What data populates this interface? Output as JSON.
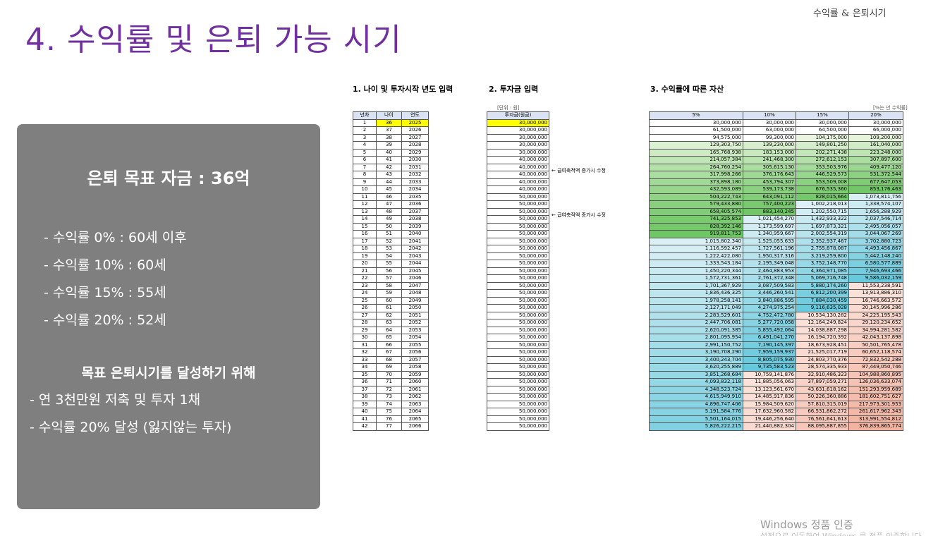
{
  "header": {
    "corner_label": "수익률 & 은퇴시기",
    "title": "4. 수익률 및 은퇴 가능 시기"
  },
  "panel": {
    "goal": "은퇴 목표 자금 : 36억",
    "rates": [
      "- 수익률   0% : 60세 이후",
      "- 수익률 10% : 60세",
      "- 수익률 15% : 55세",
      "- 수익률 20% : 52세"
    ],
    "subheading": "목표 은퇴시기를 달성하기 위해",
    "actions": [
      "- 연 3천만원 저축 및 투자 1채",
      "- 수익률 20% 달성 (잃지않는 투자)"
    ]
  },
  "sections": {
    "s1": "1. 나이 및 투자시작 년도 입력",
    "s2": "2. 투자금 입력",
    "s3": "3. 수익률에 따른 자산"
  },
  "units": {
    "investment": "[단위 : 원]",
    "rate": "[%는 년 수익률]"
  },
  "notes": {
    "n1": "← 급여축적액 증가시 수정",
    "n2": "← 급여축적액 증가시 수정"
  },
  "age_table": {
    "headers": [
      "년차",
      "나이",
      "연도"
    ],
    "highlight_row": 0
  },
  "investment_table": {
    "header": "투자금(원금)"
  },
  "asset_table": {
    "headers": [
      "5%",
      "10%",
      "15%",
      "20%"
    ]
  },
  "rows": [
    [
      "1",
      "36",
      "2025",
      "30,000,000",
      "30,000,000",
      "30,000,000",
      "30,000,000",
      "30,000,000"
    ],
    [
      "2",
      "37",
      "2026",
      "30,000,000",
      "61,500,000",
      "63,000,000",
      "64,500,000",
      "66,000,000"
    ],
    [
      "3",
      "38",
      "2027",
      "30,000,000",
      "94,575,000",
      "99,300,000",
      "104,175,000",
      "109,200,000"
    ],
    [
      "4",
      "39",
      "2028",
      "30,000,000",
      "129,303,750",
      "139,230,000",
      "149,801,250",
      "161,040,000"
    ],
    [
      "5",
      "40",
      "2029",
      "30,000,000",
      "165,768,938",
      "183,153,000",
      "202,271,438",
      "223,248,000"
    ],
    [
      "6",
      "41",
      "2030",
      "40,000,000",
      "214,057,384",
      "241,468,300",
      "272,612,153",
      "307,897,600"
    ],
    [
      "7",
      "42",
      "2031",
      "40,000,000",
      "264,760,254",
      "305,615,130",
      "353,503,976",
      "409,477,120"
    ],
    [
      "8",
      "43",
      "2032",
      "40,000,000",
      "317,998,266",
      "376,176,643",
      "446,529,573",
      "531,372,544"
    ],
    [
      "9",
      "44",
      "2033",
      "40,000,000",
      "373,898,180",
      "453,794,307",
      "553,509,008",
      "677,647,053"
    ],
    [
      "10",
      "45",
      "2034",
      "40,000,000",
      "432,593,089",
      "539,173,738",
      "676,535,360",
      "853,176,463"
    ],
    [
      "11",
      "46",
      "2035",
      "50,000,000",
      "504,222,743",
      "643,091,112",
      "828,015,664",
      "1,073,811,756"
    ],
    [
      "12",
      "47",
      "2036",
      "50,000,000",
      "579,433,880",
      "757,400,223",
      "1,002,218,013",
      "1,338,574,107"
    ],
    [
      "13",
      "48",
      "2037",
      "50,000,000",
      "658,405,574",
      "883,140,245",
      "1,202,550,715",
      "1,656,288,929"
    ],
    [
      "14",
      "49",
      "2038",
      "50,000,000",
      "741,325,853",
      "1,021,454,270",
      "1,432,933,322",
      "2,037,546,714"
    ],
    [
      "15",
      "50",
      "2039",
      "50,000,000",
      "828,392,146",
      "1,173,599,697",
      "1,697,873,321",
      "2,495,056,057"
    ],
    [
      "16",
      "51",
      "2040",
      "50,000,000",
      "919,811,753",
      "1,340,959,667",
      "2,002,554,319",
      "3,044,067,269"
    ],
    [
      "17",
      "52",
      "2041",
      "50,000,000",
      "1,015,802,340",
      "1,525,055,633",
      "2,352,937,467",
      "3,702,880,723"
    ],
    [
      "18",
      "53",
      "2042",
      "50,000,000",
      "1,116,592,457",
      "1,727,561,196",
      "2,755,878,087",
      "4,493,456,867"
    ],
    [
      "19",
      "54",
      "2043",
      "50,000,000",
      "1,222,422,080",
      "1,950,317,316",
      "3,219,259,800",
      "5,442,148,240"
    ],
    [
      "20",
      "55",
      "2044",
      "50,000,000",
      "1,333,543,184",
      "2,195,349,048",
      "3,752,148,770",
      "6,580,577,889"
    ],
    [
      "21",
      "56",
      "2045",
      "50,000,000",
      "1,450,220,344",
      "2,464,883,953",
      "4,364,971,085",
      "7,946,693,466"
    ],
    [
      "22",
      "57",
      "2046",
      "50,000,000",
      "1,572,731,361",
      "2,761,372,348",
      "5,069,716,748",
      "9,586,032,159"
    ],
    [
      "23",
      "58",
      "2047",
      "50,000,000",
      "1,701,367,929",
      "3,087,509,583",
      "5,880,174,260",
      "11,553,238,591"
    ],
    [
      "24",
      "59",
      "2048",
      "50,000,000",
      "1,836,436,325",
      "3,446,260,541",
      "6,812,200,399",
      "13,913,886,310"
    ],
    [
      "25",
      "60",
      "2049",
      "50,000,000",
      "1,978,258,141",
      "3,840,886,595",
      "7,884,030,459",
      "16,746,663,572"
    ],
    [
      "26",
      "61",
      "2050",
      "50,000,000",
      "2,127,171,049",
      "4,274,975,254",
      "9,116,635,028",
      "20,145,996,286"
    ],
    [
      "27",
      "62",
      "2051",
      "50,000,000",
      "2,283,529,601",
      "4,752,472,780",
      "10,534,130,282",
      "24,225,195,543"
    ],
    [
      "28",
      "63",
      "2052",
      "50,000,000",
      "2,447,706,081",
      "5,277,720,058",
      "12,164,249,824",
      "29,120,234,652"
    ],
    [
      "29",
      "64",
      "2053",
      "50,000,000",
      "2,620,091,385",
      "5,855,492,064",
      "14,038,887,298",
      "34,994,281,582"
    ],
    [
      "30",
      "65",
      "2054",
      "50,000,000",
      "2,801,095,954",
      "6,491,041,270",
      "16,194,720,392",
      "42,043,137,898"
    ],
    [
      "31",
      "66",
      "2055",
      "50,000,000",
      "2,991,150,752",
      "7,190,145,397",
      "18,673,928,451",
      "50,501,765,478"
    ],
    [
      "32",
      "67",
      "2056",
      "50,000,000",
      "3,190,708,290",
      "7,959,159,937",
      "21,525,017,719",
      "60,652,118,574"
    ],
    [
      "33",
      "68",
      "2057",
      "50,000,000",
      "3,400,243,704",
      "8,805,075,930",
      "24,803,770,376",
      "72,832,542,288"
    ],
    [
      "34",
      "69",
      "2058",
      "50,000,000",
      "3,620,255,889",
      "9,735,583,523",
      "28,574,335,933",
      "87,449,050,746"
    ],
    [
      "35",
      "70",
      "2059",
      "50,000,000",
      "3,851,268,684",
      "10,759,141,876",
      "32,910,486,323",
      "104,988,860,895"
    ],
    [
      "36",
      "71",
      "2060",
      "50,000,000",
      "4,093,832,118",
      "11,885,056,063",
      "37,897,059,271",
      "126,036,633,074"
    ],
    [
      "37",
      "72",
      "2061",
      "50,000,000",
      "4,348,523,724",
      "13,123,561,670",
      "43,631,618,162",
      "151,293,959,689"
    ],
    [
      "38",
      "73",
      "2062",
      "50,000,000",
      "4,615,949,910",
      "14,485,917,836",
      "50,226,360,886",
      "181,602,751,627"
    ],
    [
      "39",
      "74",
      "2063",
      "50,000,000",
      "4,896,747,406",
      "15,984,509,620",
      "57,810,315,019",
      "217,973,301,953"
    ],
    [
      "40",
      "75",
      "2064",
      "50,000,000",
      "5,191,584,776",
      "17,632,960,582",
      "66,531,862,272",
      "261,617,962,343"
    ],
    [
      "41",
      "76",
      "2065",
      "50,000,000",
      "5,501,164,015",
      "19,446,256,640",
      "76,561,641,613",
      "313,991,554,812"
    ],
    [
      "42",
      "77",
      "2066",
      "50,000,000",
      "5,826,222,215",
      "21,440,882,304",
      "88,095,887,855",
      "376,839,865,774"
    ]
  ],
  "watermark": {
    "line1": "Windows 정품 인증",
    "line2": "설정으로 이동하여 Windows 를 정품 인증합니다."
  }
}
